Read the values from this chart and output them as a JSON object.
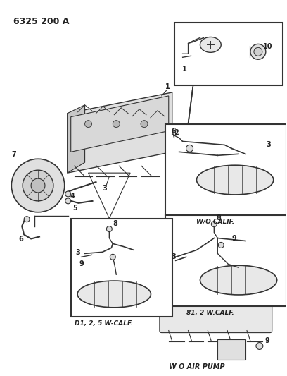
{
  "title": "6325 200 A",
  "bg_color": "#ffffff",
  "lc": "#333333",
  "tc": "#222222",
  "figsize": [
    4.08,
    5.33
  ],
  "dpi": 100,
  "labels": {
    "wo_calif": "W/O CALIF.",
    "b1_2w_calif": "81, 2 W.CALF.",
    "d1_2_5w_calif": "D1, 2, 5 W-CALF.",
    "wo_air_pump": "W O AIR PUMP"
  }
}
